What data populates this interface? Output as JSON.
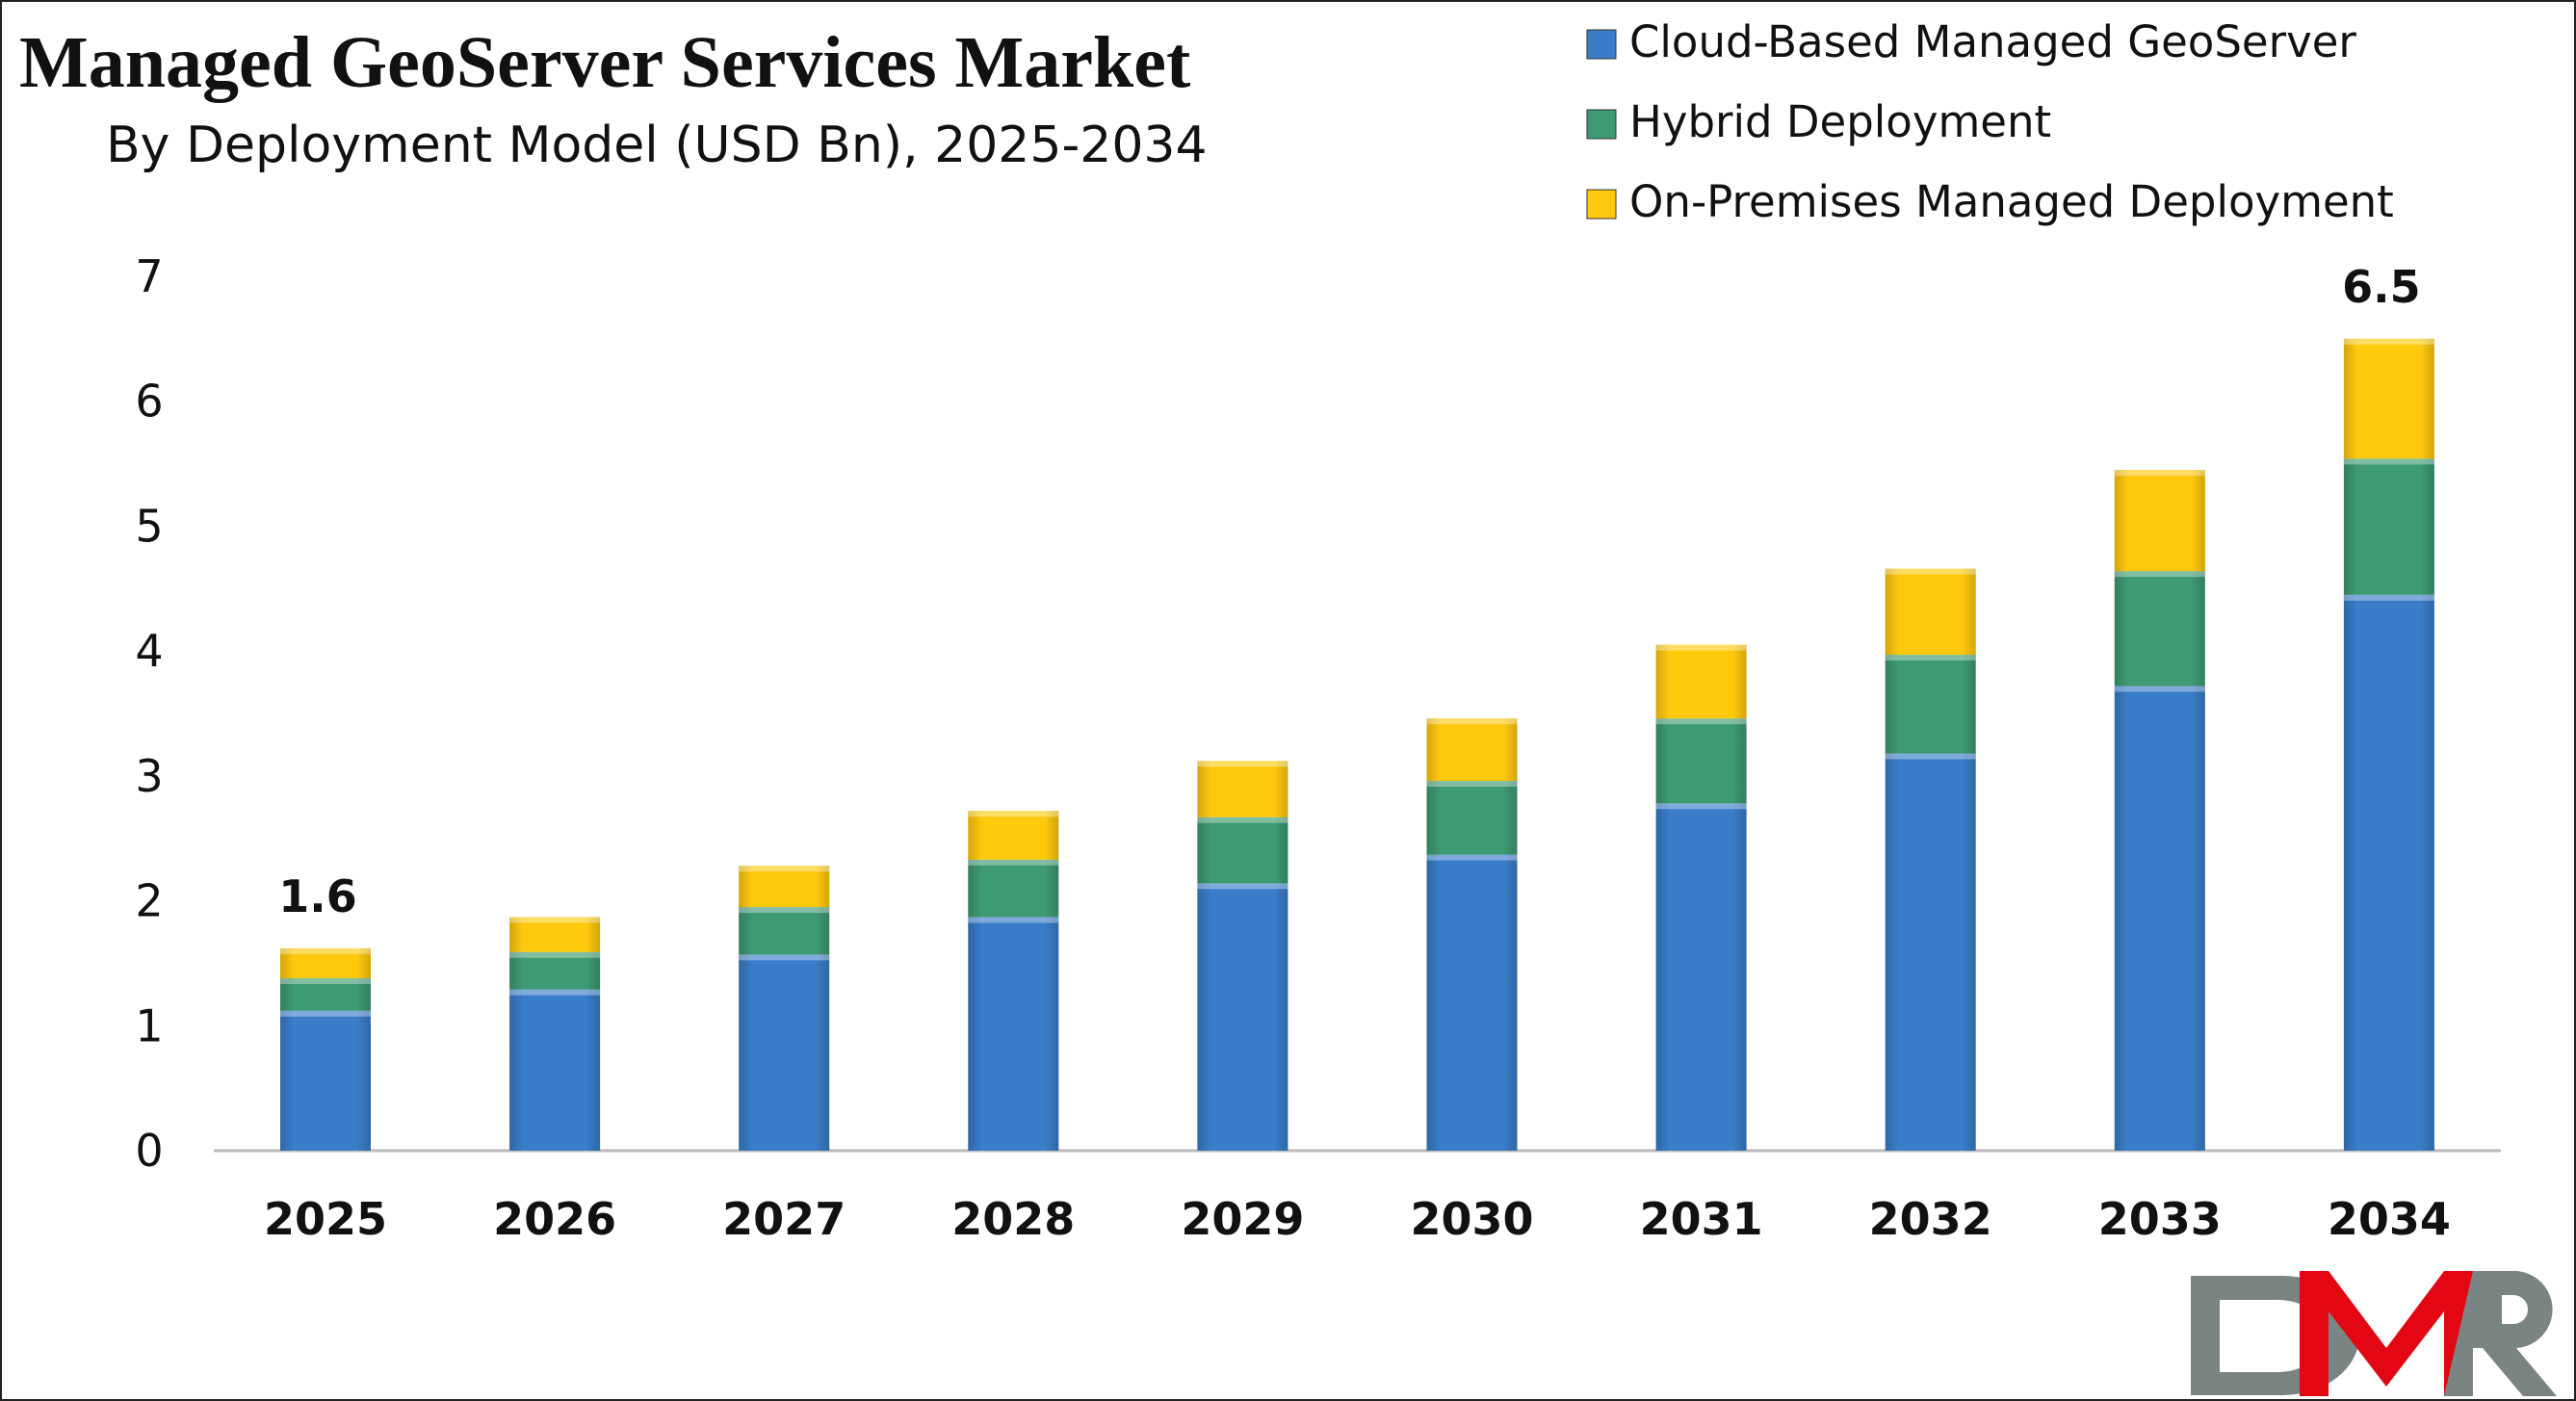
{
  "chart_data": {
    "type": "bar",
    "stacked": true,
    "title": "Managed GeoServer Services Market",
    "subtitle": "By Deployment Model (USD Bn), 2025-2034",
    "categories": [
      "2025",
      "2026",
      "2027",
      "2028",
      "2029",
      "2030",
      "2031",
      "2032",
      "2033",
      "2034"
    ],
    "series": [
      {
        "name": "Cloud-Based Managed GeoServer",
        "color": "#3a7dc9",
        "values": [
          1.12,
          1.29,
          1.57,
          1.87,
          2.14,
          2.37,
          2.78,
          3.18,
          3.72,
          4.45
        ]
      },
      {
        "name": "Hybrid Deployment",
        "color": "#3e9a72",
        "values": [
          0.26,
          0.3,
          0.38,
          0.46,
          0.53,
          0.59,
          0.68,
          0.79,
          0.92,
          1.09
        ]
      },
      {
        "name": "On-Premises Managed Deployment",
        "color": "#ffc90e",
        "values": [
          0.24,
          0.28,
          0.33,
          0.39,
          0.45,
          0.5,
          0.59,
          0.69,
          0.81,
          0.96
        ]
      }
    ],
    "data_labels": [
      {
        "category": "2025",
        "text": "1.6"
      },
      {
        "category": "2034",
        "text": "6.5"
      }
    ],
    "ylim": [
      0,
      7
    ],
    "yticks": [
      "0",
      "1",
      "2",
      "3",
      "4",
      "5",
      "6",
      "7"
    ],
    "xlabel": "",
    "ylabel": "",
    "grid": false,
    "legend_position": "top-right"
  },
  "logo": {
    "text": "DMR",
    "colors": [
      "#7a8583",
      "#e30613",
      "#7a8583"
    ]
  }
}
